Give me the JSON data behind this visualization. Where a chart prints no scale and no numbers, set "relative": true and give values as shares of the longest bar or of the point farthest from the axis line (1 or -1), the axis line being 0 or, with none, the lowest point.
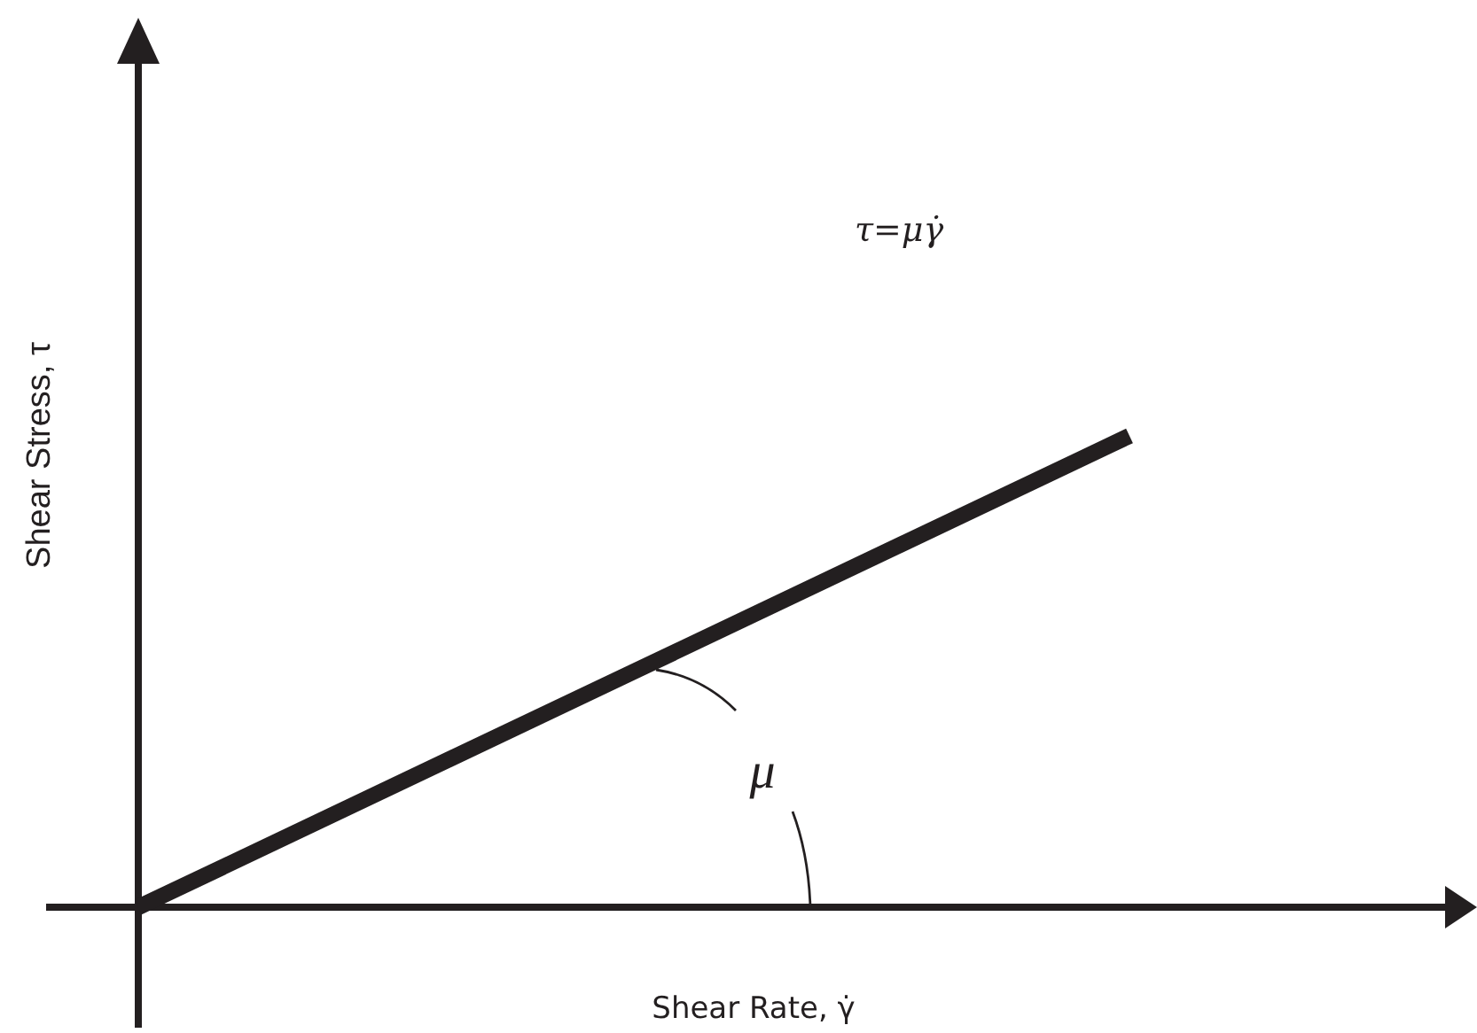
{
  "chart_data": {
    "type": "line",
    "xlabel": "Shear Rate, γ̇",
    "ylabel": "Shear Stress, τ",
    "categories": [
      null,
      null
    ],
    "values": [
      0,
      1
    ],
    "color": "#231f20",
    "relative": true,
    "annotations": [
      "τ=μγ̇",
      "μ"
    ]
  }
}
